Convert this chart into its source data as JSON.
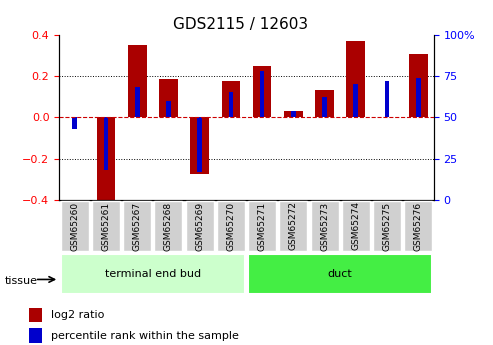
{
  "title": "GDS2115 / 12603",
  "samples": [
    "GSM65260",
    "GSM65261",
    "GSM65267",
    "GSM65268",
    "GSM65269",
    "GSM65270",
    "GSM65271",
    "GSM65272",
    "GSM65273",
    "GSM65274",
    "GSM65275",
    "GSM65276"
  ],
  "log2_ratio": [
    0.0,
    -0.43,
    0.35,
    0.185,
    -0.275,
    0.175,
    0.25,
    0.03,
    0.13,
    0.37,
    0.0,
    0.305
  ],
  "percentile_rank": [
    43,
    18,
    68,
    60,
    17,
    65,
    78,
    54,
    62,
    70,
    72,
    74
  ],
  "tissue_groups": [
    {
      "label": "terminal end bud",
      "start": 0,
      "end": 5,
      "color": "#ccffcc"
    },
    {
      "label": "duct",
      "start": 6,
      "end": 11,
      "color": "#44ee44"
    }
  ],
  "bar_color": "#aa0000",
  "percentile_color": "#0000cc",
  "ylim": [
    -0.4,
    0.4
  ],
  "y2lim": [
    0,
    100
  ],
  "y_ticks": [
    -0.4,
    -0.2,
    0.0,
    0.2,
    0.4
  ],
  "y2_ticks": [
    0,
    25,
    50,
    75,
    100
  ],
  "hline_color": "#cc0000",
  "dotline_color": "black",
  "background_color": "#ffffff",
  "legend_red_label": "log2 ratio",
  "legend_blue_label": "percentile rank within the sample",
  "tissue_label": "tissue"
}
